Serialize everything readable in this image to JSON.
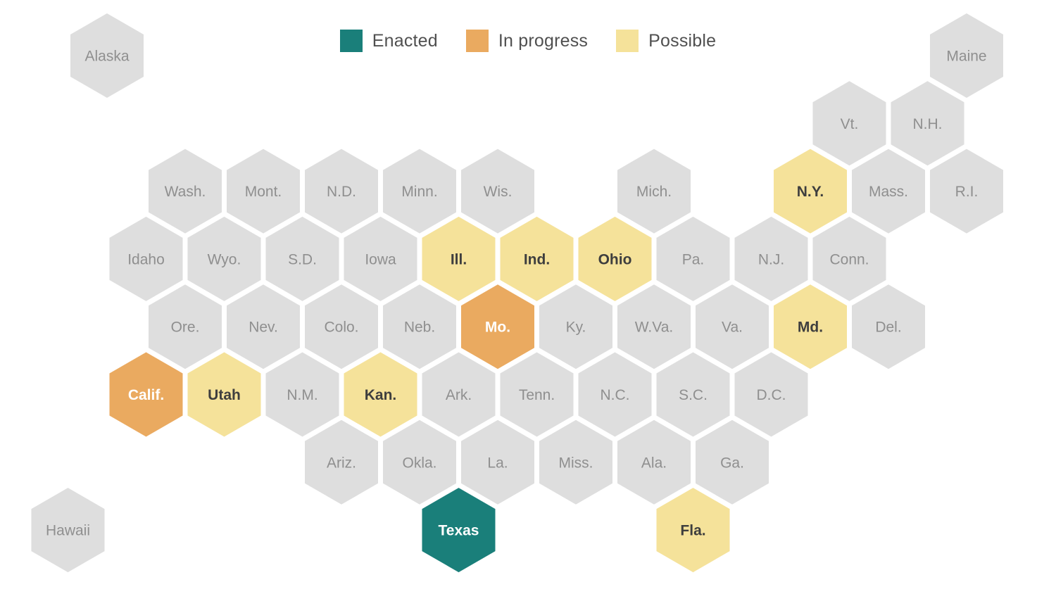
{
  "legend": [
    {
      "key": "enacted",
      "label": "Enacted"
    },
    {
      "key": "progress",
      "label": "In progress"
    },
    {
      "key": "possible",
      "label": "Possible"
    }
  ],
  "colors": {
    "enacted": "#1a7f7a",
    "progress": "#eaaa60",
    "possible": "#f5e29a",
    "none": "#dedede",
    "label_light": "#ffffff",
    "label_dark": "#3e3e3e",
    "label_none": "#8f8f8f"
  },
  "states": [
    {
      "label": "Alaska",
      "col": 0,
      "row": 0,
      "status": "none"
    },
    {
      "label": "Maine",
      "col": 11,
      "row": 0,
      "status": "none"
    },
    {
      "label": "Vt.",
      "col": 10,
      "row": 1,
      "status": "none"
    },
    {
      "label": "N.H.",
      "col": 11,
      "row": 1,
      "status": "none"
    },
    {
      "label": "Wash.",
      "col": 1,
      "row": 2,
      "status": "none"
    },
    {
      "label": "Mont.",
      "col": 2,
      "row": 2,
      "status": "none"
    },
    {
      "label": "N.D.",
      "col": 3,
      "row": 2,
      "status": "none"
    },
    {
      "label": "Minn.",
      "col": 4,
      "row": 2,
      "status": "none"
    },
    {
      "label": "Wis.",
      "col": 5,
      "row": 2,
      "status": "none"
    },
    {
      "label": "Mich.",
      "col": 7,
      "row": 2,
      "status": "none"
    },
    {
      "label": "N.Y.",
      "col": 9,
      "row": 2,
      "status": "possible"
    },
    {
      "label": "Mass.",
      "col": 10,
      "row": 2,
      "status": "none"
    },
    {
      "label": "R.I.",
      "col": 11,
      "row": 2,
      "status": "none"
    },
    {
      "label": "Idaho",
      "col": 1,
      "row": 3,
      "status": "none"
    },
    {
      "label": "Wyo.",
      "col": 2,
      "row": 3,
      "status": "none"
    },
    {
      "label": "S.D.",
      "col": 3,
      "row": 3,
      "status": "none"
    },
    {
      "label": "Iowa",
      "col": 4,
      "row": 3,
      "status": "none"
    },
    {
      "label": "Ill.",
      "col": 5,
      "row": 3,
      "status": "possible"
    },
    {
      "label": "Ind.",
      "col": 6,
      "row": 3,
      "status": "possible"
    },
    {
      "label": "Ohio",
      "col": 7,
      "row": 3,
      "status": "possible"
    },
    {
      "label": "Pa.",
      "col": 8,
      "row": 3,
      "status": "none"
    },
    {
      "label": "N.J.",
      "col": 9,
      "row": 3,
      "status": "none"
    },
    {
      "label": "Conn.",
      "col": 10,
      "row": 3,
      "status": "none"
    },
    {
      "label": "Ore.",
      "col": 1,
      "row": 4,
      "status": "none"
    },
    {
      "label": "Nev.",
      "col": 2,
      "row": 4,
      "status": "none"
    },
    {
      "label": "Colo.",
      "col": 3,
      "row": 4,
      "status": "none"
    },
    {
      "label": "Neb.",
      "col": 4,
      "row": 4,
      "status": "none"
    },
    {
      "label": "Mo.",
      "col": 5,
      "row": 4,
      "status": "progress"
    },
    {
      "label": "Ky.",
      "col": 6,
      "row": 4,
      "status": "none"
    },
    {
      "label": "W.Va.",
      "col": 7,
      "row": 4,
      "status": "none"
    },
    {
      "label": "Va.",
      "col": 8,
      "row": 4,
      "status": "none"
    },
    {
      "label": "Md.",
      "col": 9,
      "row": 4,
      "status": "possible"
    },
    {
      "label": "Del.",
      "col": 10,
      "row": 4,
      "status": "none"
    },
    {
      "label": "Calif.",
      "col": 1,
      "row": 5,
      "status": "progress"
    },
    {
      "label": "Utah",
      "col": 2,
      "row": 5,
      "status": "possible"
    },
    {
      "label": "N.M.",
      "col": 3,
      "row": 5,
      "status": "none"
    },
    {
      "label": "Kan.",
      "col": 4,
      "row": 5,
      "status": "possible"
    },
    {
      "label": "Ark.",
      "col": 5,
      "row": 5,
      "status": "none"
    },
    {
      "label": "Tenn.",
      "col": 6,
      "row": 5,
      "status": "none"
    },
    {
      "label": "N.C.",
      "col": 7,
      "row": 5,
      "status": "none"
    },
    {
      "label": "S.C.",
      "col": 8,
      "row": 5,
      "status": "none"
    },
    {
      "label": "D.C.",
      "col": 9,
      "row": 5,
      "status": "none"
    },
    {
      "label": "Ariz.",
      "col": 3,
      "row": 6,
      "status": "none"
    },
    {
      "label": "Okla.",
      "col": 4,
      "row": 6,
      "status": "none"
    },
    {
      "label": "La.",
      "col": 5,
      "row": 6,
      "status": "none"
    },
    {
      "label": "Miss.",
      "col": 6,
      "row": 6,
      "status": "none"
    },
    {
      "label": "Ala.",
      "col": 7,
      "row": 6,
      "status": "none"
    },
    {
      "label": "Ga.",
      "col": 8,
      "row": 6,
      "status": "none"
    },
    {
      "label": "Hawaii",
      "col": 0,
      "row": 7,
      "status": "none"
    },
    {
      "label": "Texas",
      "col": 5,
      "row": 7,
      "status": "enacted"
    },
    {
      "label": "Fla.",
      "col": 8,
      "row": 7,
      "status": "possible"
    }
  ]
}
